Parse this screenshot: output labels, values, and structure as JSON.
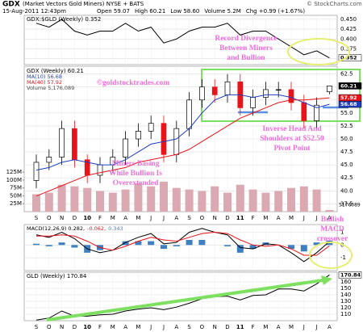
{
  "header": {
    "symbol": "GDX",
    "name": "(Market Vectors Gold Miners) NYSE + BATS",
    "date": "15-Aug-2011 12:43pm",
    "stats": [
      "Open 59.07",
      "High 60.21",
      "Low 58.60",
      "Volume 5.2M",
      "Chg +0.99 (+1.67%)"
    ],
    "watermark": "© StockCharts.com"
  },
  "annotations": [
    {
      "lines": [
        "Record Divergence",
        "Between Miners",
        "and Bullion"
      ]
    },
    {
      "lines": [
        "©goldstocktrades.com"
      ]
    },
    {
      "lines": [
        "Inverse Head And",
        "Shoulders at $52.50",
        "Pivot Point"
      ]
    },
    {
      "lines": [
        "Miners Basing",
        "While Bullion Is",
        "Overextended"
      ]
    },
    {
      "lines": [
        "Bullish",
        "MACD",
        "crossover"
      ]
    }
  ],
  "chart_data": [
    {
      "type": "line",
      "title": "GDX:$GLD (Weekly) 0.352",
      "color": "#000000",
      "end_label": "0.352",
      "values": [
        0.44,
        0.43,
        0.45,
        0.42,
        0.41,
        0.42,
        0.42,
        0.44,
        0.42,
        0.43,
        0.39,
        0.4,
        0.42,
        0.43,
        0.43,
        0.44,
        0.41,
        0.42,
        0.42,
        0.4,
        0.38,
        0.36,
        0.37,
        0.352
      ],
      "ylim": [
        0.335,
        0.46
      ],
      "yticks": [
        {
          "value": 0.45,
          "label": "0.450"
        },
        0.425,
        {
          "value": 0.4,
          "label": "0.400"
        },
        0.375,
        {
          "value": 0.35,
          "label": "0.350"
        }
      ],
      "grid": true
    },
    {
      "type": "candlestick",
      "title": "GDX (Weekly) 60.21",
      "categories": [
        "S",
        "O",
        "N",
        "D",
        "10",
        "F",
        "M",
        "A",
        "M",
        "J",
        "J",
        "A",
        "S",
        "O",
        "N",
        "D",
        "11",
        "F",
        "M",
        "A",
        "M",
        "J",
        "J",
        "A"
      ],
      "open": [
        42,
        45.5,
        46.5,
        52,
        46,
        43,
        45,
        46.5,
        50,
        51.5,
        53,
        47,
        52,
        57.5,
        60,
        58.5,
        61,
        56,
        58,
        59.5,
        59.5,
        57,
        53.5,
        59.07
      ],
      "high": [
        47,
        48,
        53.5,
        53.5,
        47,
        46.5,
        48,
        51.5,
        53,
        54.5,
        54.5,
        53.5,
        59,
        61.5,
        61.5,
        62.5,
        62.5,
        59.5,
        61,
        61,
        61,
        58.5,
        58,
        60.21
      ],
      "low": [
        40.5,
        44,
        45,
        44.5,
        41.5,
        41.5,
        43.5,
        45,
        48.5,
        50,
        45.5,
        45.5,
        50.5,
        56,
        57,
        57,
        54.5,
        54.5,
        56.5,
        58,
        55.5,
        52,
        52,
        58.6
      ],
      "close": [
        45.5,
        46.5,
        52,
        46,
        43,
        45,
        46.5,
        50,
        51.5,
        53,
        47,
        52,
        57.5,
        60,
        58.5,
        61,
        56,
        58,
        59.5,
        59.5,
        57,
        53.5,
        56.5,
        60.21
      ],
      "up_color": "#000000",
      "down_color": "#e8141b",
      "end_label": "60.21",
      "series": [
        {
          "name": "MA(10) 56.68",
          "color": "#1f3fbf",
          "end_label": "56.68",
          "values": [
            44,
            44.5,
            45.5,
            46,
            45.5,
            45,
            45,
            46,
            47.5,
            49,
            49.5,
            50,
            52,
            55,
            57.5,
            58.5,
            58.5,
            58,
            58.5,
            58.5,
            58,
            57,
            56,
            56.68
          ]
        },
        {
          "name": "MA(40) 57.92",
          "color": "#e8141b",
          "end_label": "57.92",
          "values": [
            39,
            40,
            41,
            42,
            43,
            43.5,
            44,
            44.5,
            45.5,
            46,
            46.5,
            47,
            48,
            49.5,
            51,
            52.5,
            54,
            55,
            56,
            57,
            57.5,
            57.5,
            57.7,
            57.92
          ]
        },
        {
          "name": "Volume 5,176,089",
          "color": "#dba9b2",
          "axis": "y2",
          "end_label": "5176089",
          "values": [
            55000000,
            60000000,
            85000000,
            80000000,
            75000000,
            65000000,
            60000000,
            70000000,
            90000000,
            80000000,
            95000000,
            75000000,
            70000000,
            65000000,
            80000000,
            60000000,
            85000000,
            70000000,
            60000000,
            65000000,
            75000000,
            80000000,
            70000000,
            5176089
          ]
        }
      ],
      "ylim": [
        36,
        64
      ],
      "yticks": [
        62.5,
        {
          "value": 60,
          "label": "60.0"
        },
        57.5,
        {
          "value": 55,
          "label": "55.0"
        },
        52.5,
        {
          "value": 50,
          "label": "50.0"
        },
        47.5,
        {
          "value": 45,
          "label": "45.0"
        },
        42.5,
        {
          "value": 40,
          "label": "40.0"
        },
        37.5
      ],
      "y2lim": [
        0,
        460000000
      ],
      "y2ticks": [
        {
          "value": 125000000,
          "label": "125M"
        },
        {
          "value": 100000000,
          "label": "100M"
        },
        {
          "value": 75000000,
          "label": "75M"
        },
        {
          "value": 50000000,
          "label": "50M"
        },
        {
          "value": 25000000,
          "label": "25M"
        }
      ],
      "grid": true
    },
    {
      "type": "macd",
      "series": [
        {
          "name": "MACD(12,26,9) 0.282,",
          "color": "#000000",
          "values": [
            0.8,
            0.6,
            1.0,
            0.5,
            -0.3,
            -0.6,
            -0.4,
            0.2,
            0.6,
            0.9,
            0.1,
            0.2,
            1.0,
            1.3,
            1.0,
            0.8,
            -0.2,
            -0.3,
            0.1,
            0.0,
            -0.6,
            -1.3,
            -0.6,
            0.282
          ]
        },
        {
          "name": "-0.062,",
          "color": "#e8141b",
          "values": [
            0.7,
            0.7,
            0.8,
            0.7,
            0.3,
            -0.2,
            -0.4,
            -0.1,
            0.3,
            0.6,
            0.4,
            0.3,
            0.6,
            0.9,
            1.0,
            0.9,
            0.4,
            0.0,
            -0.1,
            0.0,
            -0.3,
            -0.8,
            -0.8,
            -0.062
          ]
        },
        {
          "name": "0.343",
          "color": "#3d7fc1",
          "bars": true,
          "values": [
            0.1,
            -0.1,
            0.2,
            -0.2,
            -0.6,
            -0.4,
            0.0,
            0.3,
            0.3,
            0.3,
            -0.3,
            -0.1,
            0.4,
            0.4,
            0.0,
            -0.1,
            -0.6,
            -0.3,
            0.2,
            0.0,
            -0.3,
            -0.5,
            0.2,
            0.343
          ]
        }
      ],
      "ylim": [
        -2,
        1.6
      ],
      "yticks": [
        1,
        0,
        -1
      ],
      "grid": true
    },
    {
      "type": "line",
      "title": "GLD (Weekly) 170.84",
      "color": "#000000",
      "end_label": "170.84",
      "categories": [
        "S",
        "O",
        "N",
        "D",
        "10",
        "F",
        "M",
        "A",
        "M",
        "J",
        "J",
        "A",
        "S",
        "O",
        "N",
        "D",
        "11",
        "F",
        "M",
        "A",
        "M",
        "J",
        "J",
        "A"
      ],
      "values": [
        101,
        104,
        115,
        107,
        107,
        109,
        110,
        115,
        118,
        120,
        117,
        121,
        127,
        134,
        137,
        138,
        132,
        139,
        140,
        149,
        149,
        146,
        157,
        170.84
      ],
      "ylim": [
        100,
        175
      ],
      "yticks": [
        160,
        150,
        140,
        130,
        120,
        110
      ],
      "grid": true
    }
  ]
}
